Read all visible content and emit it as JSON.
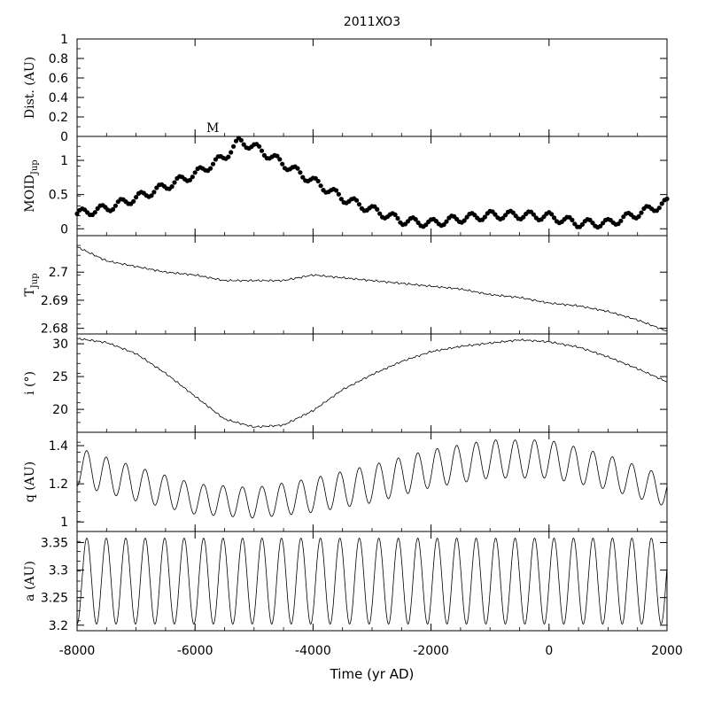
{
  "chart_data": {
    "type": "line",
    "title": "2011XO3",
    "xlabel": "Time (yr AD)",
    "xlim": [
      -8000,
      2000
    ],
    "xticks": [
      -8000,
      -6000,
      -4000,
      -2000,
      0,
      2000
    ],
    "panels": [
      {
        "id": "dist",
        "ylabel": "Dist. (AU)",
        "ylim": [
          0,
          1
        ],
        "yticks": [
          "0",
          "0.2",
          "0.4",
          "0.6",
          "0.8",
          "1"
        ],
        "style": "line",
        "points": []
      },
      {
        "id": "moid",
        "ylabel": "MOID",
        "ylabel_sub": "Jup",
        "ylim": [
          -0.1,
          1.35
        ],
        "yticks": [
          "0",
          "0.5",
          "1"
        ],
        "style": "dots",
        "marker_label": "M",
        "marker_x": -5700,
        "x": [
          -8000,
          -7500,
          -7000,
          -6500,
          -6000,
          -5500,
          -5250,
          -5000,
          -4500,
          -4000,
          -3500,
          -3000,
          -2500,
          -2000,
          -1500,
          -1000,
          -500,
          0,
          500,
          1000,
          1500,
          2000
        ],
        "y": [
          0.22,
          0.3,
          0.45,
          0.62,
          0.8,
          1.05,
          1.28,
          1.2,
          0.95,
          0.7,
          0.45,
          0.28,
          0.12,
          0.08,
          0.15,
          0.2,
          0.2,
          0.18,
          0.08,
          0.08,
          0.22,
          0.38
        ]
      },
      {
        "id": "tjup",
        "ylabel": "T",
        "ylabel_sub": "Jup",
        "ylim": [
          2.678,
          2.713
        ],
        "yticks": [
          "2.68",
          "2.69",
          "2.7"
        ],
        "style": "line",
        "x": [
          -8000,
          -7500,
          -7000,
          -6500,
          -6000,
          -5500,
          -5000,
          -4500,
          -4000,
          -3500,
          -3000,
          -2500,
          -2000,
          -1500,
          -1000,
          -500,
          0,
          500,
          1000,
          1500,
          2000
        ],
        "y": [
          2.709,
          2.704,
          2.702,
          2.7,
          2.699,
          2.697,
          2.697,
          2.697,
          2.699,
          2.698,
          2.697,
          2.696,
          2.695,
          2.694,
          2.692,
          2.691,
          2.689,
          2.688,
          2.686,
          2.683,
          2.679
        ]
      },
      {
        "id": "incl",
        "ylabel": "i (°)",
        "ylim": [
          16.5,
          31.5
        ],
        "yticks": [
          "20",
          "25",
          "30"
        ],
        "style": "line",
        "x": [
          -8000,
          -7500,
          -7000,
          -6500,
          -6000,
          -5500,
          -5000,
          -4500,
          -4000,
          -3500,
          -3000,
          -2500,
          -2000,
          -1500,
          -1000,
          -500,
          0,
          500,
          1000,
          1500,
          2000
        ],
        "y": [
          30.8,
          30.2,
          28.5,
          25.5,
          22.0,
          18.5,
          17.3,
          17.6,
          19.8,
          23.0,
          25.3,
          27.3,
          28.8,
          29.6,
          30.1,
          30.6,
          30.3,
          29.5,
          28.0,
          26.2,
          24.2
        ]
      },
      {
        "id": "q",
        "ylabel": "q (AU)",
        "ylim": [
          0.95,
          1.47
        ],
        "yticks": [
          "1",
          "1.2",
          "1.4"
        ],
        "style": "oscillation",
        "period": 330,
        "x": [
          -8000,
          -7000,
          -6000,
          -5000,
          -4000,
          -3000,
          -2000,
          -1000,
          0,
          1000,
          2000
        ],
        "mean": [
          1.29,
          1.2,
          1.12,
          1.1,
          1.14,
          1.2,
          1.28,
          1.33,
          1.33,
          1.26,
          1.16
        ],
        "amp": [
          0.1,
          0.09,
          0.08,
          0.08,
          0.09,
          0.1,
          0.1,
          0.1,
          0.1,
          0.09,
          0.08
        ]
      },
      {
        "id": "a",
        "ylabel": "a (AU)",
        "ylim": [
          3.19,
          3.37
        ],
        "yticks": [
          "3.2",
          "3.25",
          "3.3",
          "3.35"
        ],
        "style": "oscillation",
        "period": 330,
        "x": [
          -8000,
          2000
        ],
        "mean": [
          3.28,
          3.28
        ],
        "amp": [
          0.078,
          0.078
        ]
      }
    ]
  }
}
